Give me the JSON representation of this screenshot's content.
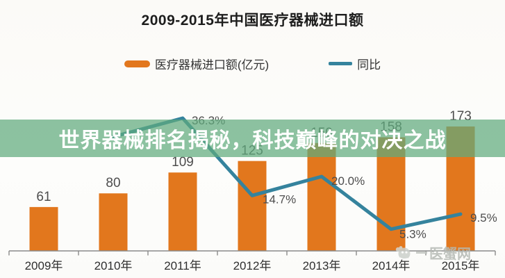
{
  "page": {
    "title": "2009-2015年中国医疗器械进口额"
  },
  "legend": {
    "items": [
      {
        "label": "医疗器械进口额(亿元)",
        "marker": "bar-swatch",
        "color": "#e2771d"
      },
      {
        "label": "同比",
        "marker": "line-swatch",
        "color": "#35839d"
      }
    ]
  },
  "overlay_banner": {
    "text": "世界器械排名揭秘，科技巅峰的对决之战",
    "background": "rgba(95,170,125,0.72)",
    "text_color": "#ffffff"
  },
  "watermark": {
    "icon": "crab-icon",
    "text": "医蟹网",
    "color": "#b5bab4"
  },
  "chart_data": {
    "type": "bar+line",
    "title": "2009-2015年中国医疗器械进口额",
    "categories": [
      "2009年",
      "2010年",
      "2011年",
      "2012年",
      "2013年",
      "2014年",
      "2015年"
    ],
    "series": [
      {
        "name": "医疗器械进口额(亿元)",
        "type": "bar",
        "color": "#e2771d",
        "values": [
          61,
          80,
          109,
          125,
          150,
          158,
          173
        ],
        "value_labels": [
          "61",
          "80",
          "109",
          "125",
          "150",
          "158",
          "173"
        ]
      },
      {
        "name": "同比",
        "type": "line",
        "color": "#35839d",
        "unit": "%",
        "values": [
          null,
          31.1,
          36.3,
          14.7,
          20.0,
          5.3,
          9.5
        ],
        "point_labels": [
          "",
          "",
          "36.3%",
          "14.7%",
          "20.0%",
          "5.3%",
          "9.5%"
        ]
      }
    ],
    "xlabel": "",
    "ylabel": "",
    "value_axis_range": [
      0,
      180
    ],
    "pct_axis_range": [
      0,
      40
    ],
    "gridlines": false,
    "legend_position": "top-center",
    "label_colors": {
      "bar_value": "#4d4d4d",
      "pct": "#4d4d4d",
      "axis_tick": "#2f2f2f"
    },
    "axis_color": "#8a8a8a"
  }
}
